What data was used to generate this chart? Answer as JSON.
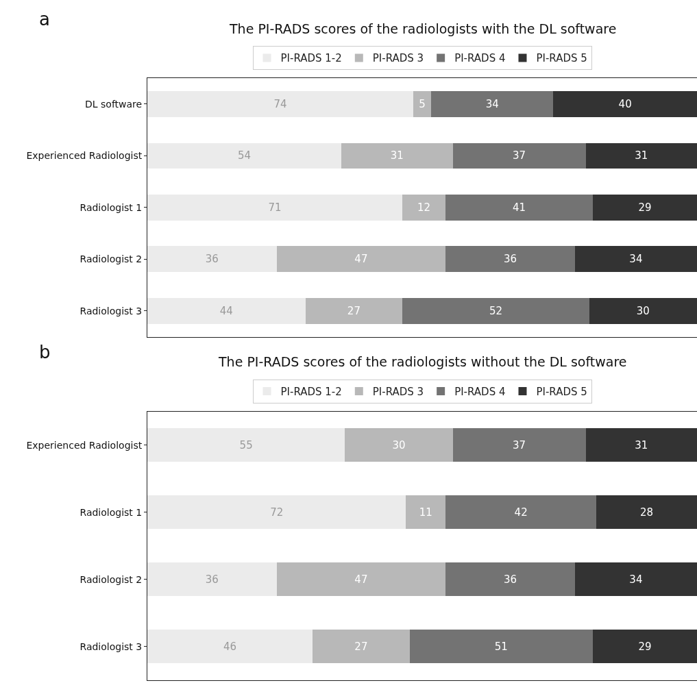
{
  "chart_data": [
    {
      "type": "bar",
      "orientation": "horizontal",
      "stacked": true,
      "title": "The PI-RADS scores of the radiologists with the DL software",
      "annotations": [
        "a"
      ],
      "categories": [
        "DL software",
        "Experienced Radiologist",
        "Radiologist 1",
        "Radiologist 2",
        "Radiologist 3"
      ],
      "xlim": [
        0,
        153
      ],
      "tick_labels": "y",
      "legend": "top",
      "data_labels": true,
      "series": [
        {
          "name": "PI-RADS 1-2",
          "color": "#ebebeb",
          "values": [
            74,
            54,
            71,
            36,
            44
          ]
        },
        {
          "name": "PI-RADS 3",
          "color": "#b8b8b8",
          "values": [
            5,
            31,
            12,
            47,
            27
          ]
        },
        {
          "name": "PI-RADS 4",
          "color": "#737373",
          "values": [
            34,
            37,
            41,
            36,
            52
          ]
        },
        {
          "name": "PI-RADS 5",
          "color": "#333333",
          "values": [
            40,
            31,
            29,
            34,
            30
          ]
        }
      ]
    },
    {
      "type": "bar",
      "orientation": "horizontal",
      "stacked": true,
      "title": "The PI-RADS scores of the radiologists without the DL software",
      "annotations": [
        "b"
      ],
      "categories": [
        "Experienced Radiologist",
        "Radiologist 1",
        "Radiologist 2",
        "Radiologist 3"
      ],
      "xlim": [
        0,
        153
      ],
      "tick_labels": "y",
      "legend": "top",
      "data_labels": true,
      "series": [
        {
          "name": "PI-RADS 1-2",
          "color": "#ebebeb",
          "values": [
            55,
            72,
            36,
            46
          ]
        },
        {
          "name": "PI-RADS 3",
          "color": "#b8b8b8",
          "values": [
            30,
            11,
            47,
            27
          ]
        },
        {
          "name": "PI-RADS 4",
          "color": "#737373",
          "values": [
            37,
            42,
            36,
            51
          ]
        },
        {
          "name": "PI-RADS 5",
          "color": "#333333",
          "values": [
            31,
            28,
            34,
            29
          ]
        }
      ]
    }
  ]
}
